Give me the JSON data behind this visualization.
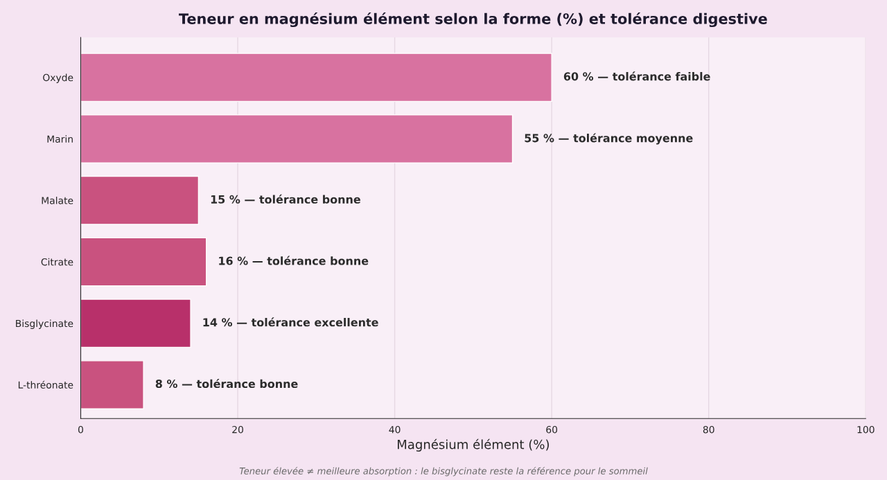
{
  "chart_data": {
    "type": "bar",
    "orientation": "horizontal",
    "title": "Teneur en magnésium élément selon la forme (%) et tolérance digestive",
    "xlabel": "Magnésium élément (%)",
    "categories": [
      "Oxyde",
      "Marin",
      "Malate",
      "Citrate",
      "Bisglycinate",
      "L-thréonate"
    ],
    "values": [
      60,
      55,
      15,
      16,
      14,
      8
    ],
    "colors": [
      "#d872a0",
      "#d872a0",
      "#c9527f",
      "#c9527f",
      "#b8306a",
      "#c9527f"
    ],
    "value_labels": [
      "60 % — tolérance faible",
      "55 % — tolérance moyenne",
      "15 % — tolérance bonne",
      "16 % — tolérance bonne",
      "14 % — tolérance excellente",
      "8 % — tolérance bonne"
    ],
    "xlim": [
      0,
      100
    ],
    "xticks": [
      0,
      20,
      40,
      60,
      80,
      100
    ],
    "grid": "x",
    "annotations": [
      "Teneur élevée ≠ meilleure absorption : le bisglycinate reste la référence pour le sommeil"
    ]
  }
}
